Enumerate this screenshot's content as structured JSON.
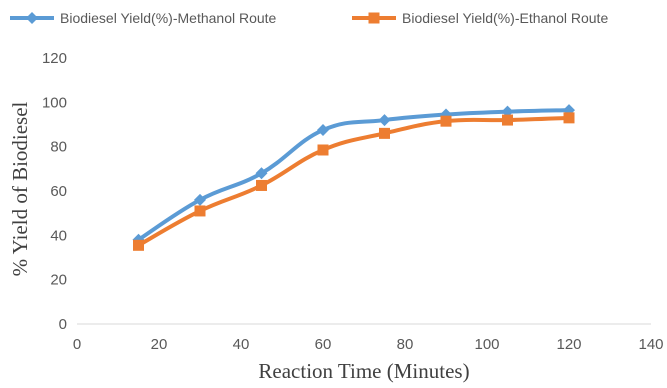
{
  "chart_data": {
    "type": "line",
    "title": "",
    "xlabel": "Reaction Time (Minutes)",
    "ylabel": "% Yield of Biodiesel",
    "xlim": [
      0,
      140
    ],
    "ylim": [
      0,
      120
    ],
    "xticks": [
      0,
      20,
      40,
      60,
      80,
      100,
      120,
      140
    ],
    "yticks": [
      0,
      20,
      40,
      60,
      80,
      100,
      120
    ],
    "grid": false,
    "legend_position": "top",
    "series": [
      {
        "name": "Biodiesel Yield(%)-Methanol  Route",
        "color": "#5B9BD5",
        "marker": "diamond",
        "smooth": true,
        "x": [
          15,
          30,
          45,
          60,
          75,
          90,
          105,
          120
        ],
        "y": [
          38,
          56,
          68,
          87.5,
          92,
          94.5,
          95.8,
          96.5
        ]
      },
      {
        "name": "Biodiesel Yield(%)-Ethanol Route",
        "color": "#ED7D31",
        "marker": "square",
        "smooth": true,
        "x": [
          15,
          30,
          45,
          60,
          75,
          90,
          105,
          120
        ],
        "y": [
          35.5,
          51,
          62.5,
          78.5,
          86,
          91.5,
          92,
          93
        ]
      }
    ]
  }
}
